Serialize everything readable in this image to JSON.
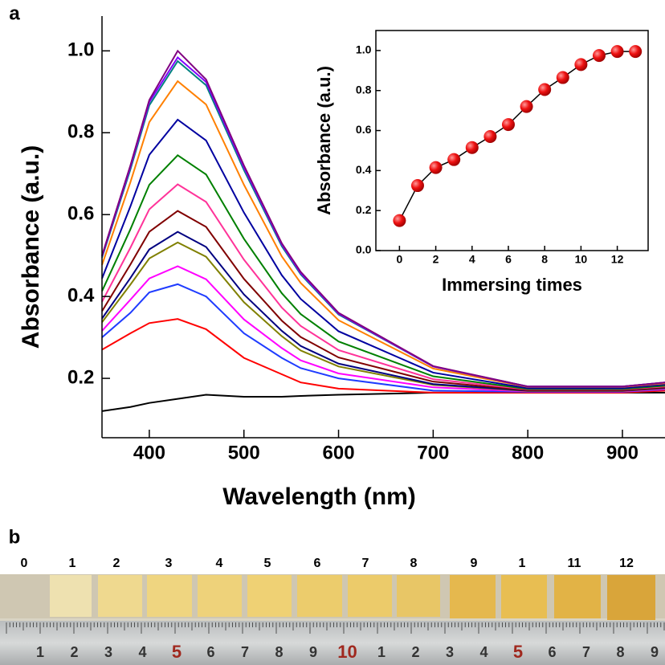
{
  "chart_data": [
    {
      "type": "line",
      "panel_label": "a",
      "x_label": "Wavelength (nm)",
      "y_label": "Absorbance (a.u.)",
      "x": [
        350,
        380,
        400,
        430,
        460,
        500,
        540,
        560,
        600,
        700,
        800,
        900,
        945
      ],
      "xlim": [
        350,
        945
      ],
      "ylim": [
        0.055,
        1.085
      ],
      "xticks": [
        400,
        500,
        600,
        700,
        800,
        900
      ],
      "yticks": [
        0.2,
        0.4,
        0.6,
        0.8,
        {
          "value": 1,
          "label": "1.0"
        }
      ],
      "markers": false,
      "series": [
        {
          "color": "#000000",
          "values": [
            0.12,
            0.13,
            0.14,
            0.15,
            0.16,
            0.155,
            0.155,
            0.157,
            0.16,
            0.165,
            0.165,
            0.165,
            0.165
          ]
        },
        {
          "color": "#ff0000",
          "values": [
            0.27,
            0.31,
            0.335,
            0.345,
            0.32,
            0.25,
            0.21,
            0.19,
            0.175,
            0.165,
            0.165,
            0.165,
            0.17
          ]
        },
        {
          "color": "#1f3cff",
          "values": [
            0.3,
            0.36,
            0.41,
            0.43,
            0.4,
            0.31,
            0.25,
            0.225,
            0.2,
            0.17,
            0.167,
            0.167,
            0.173
          ]
        },
        {
          "color": "#ff00ff",
          "values": [
            0.316,
            0.392,
            0.444,
            0.474,
            0.442,
            0.344,
            0.274,
            0.244,
            0.212,
            0.178,
            0.168,
            0.168,
            0.174
          ]
        },
        {
          "color": "#808000",
          "values": [
            0.337,
            0.429,
            0.493,
            0.532,
            0.497,
            0.386,
            0.303,
            0.268,
            0.229,
            0.184,
            0.169,
            0.169,
            0.176
          ]
        },
        {
          "color": "#000080",
          "values": [
            0.346,
            0.445,
            0.515,
            0.558,
            0.521,
            0.405,
            0.316,
            0.279,
            0.236,
            0.186,
            0.17,
            0.17,
            0.177
          ]
        },
        {
          "color": "#800000",
          "values": [
            0.364,
            0.478,
            0.558,
            0.609,
            0.57,
            0.443,
            0.341,
            0.301,
            0.251,
            0.192,
            0.171,
            0.171,
            0.178
          ]
        },
        {
          "color": "#ff3399",
          "values": [
            0.387,
            0.519,
            0.613,
            0.674,
            0.631,
            0.49,
            0.373,
            0.328,
            0.269,
            0.198,
            0.173,
            0.173,
            0.18
          ]
        },
        {
          "color": "#008000",
          "values": [
            0.413,
            0.564,
            0.673,
            0.745,
            0.698,
            0.541,
            0.408,
            0.357,
            0.29,
            0.205,
            0.174,
            0.174,
            0.182
          ]
        },
        {
          "color": "#0000a0",
          "values": [
            0.444,
            0.62,
            0.746,
            0.832,
            0.781,
            0.605,
            0.452,
            0.394,
            0.315,
            0.214,
            0.176,
            0.176,
            0.185
          ]
        },
        {
          "color": "#ff8000",
          "values": [
            0.477,
            0.679,
            0.826,
            0.926,
            0.869,
            0.673,
            0.498,
            0.433,
            0.342,
            0.224,
            0.179,
            0.179,
            0.188
          ]
        },
        {
          "color": "#008080",
          "values": [
            0.495,
            0.71,
            0.867,
            0.975,
            0.916,
            0.709,
            0.523,
            0.454,
            0.356,
            0.229,
            0.18,
            0.18,
            0.19
          ]
        },
        {
          "color": "#8000ff",
          "values": [
            0.498,
            0.716,
            0.875,
            0.984,
            0.924,
            0.715,
            0.527,
            0.457,
            0.358,
            0.229,
            0.18,
            0.18,
            0.19
          ]
        },
        {
          "color": "#800080",
          "values": [
            0.5,
            0.72,
            0.88,
            1.0,
            0.93,
            0.72,
            0.53,
            0.46,
            0.36,
            0.23,
            0.18,
            0.18,
            0.19
          ]
        }
      ]
    },
    {
      "type": "line",
      "x_label": "Immersing times",
      "y_label": "Absorbance (a.u.)",
      "x": [
        0,
        1,
        2,
        3,
        4,
        5,
        6,
        7,
        8,
        9,
        10,
        11,
        12,
        13
      ],
      "xlim": [
        -1.3,
        13.7
      ],
      "ylim": [
        0,
        1.1
      ],
      "xticks": [
        0,
        2,
        4,
        6,
        8,
        10,
        12
      ],
      "yticks": [
        {
          "value": 0,
          "label": "0.0"
        },
        0.2,
        0.4,
        0.6,
        0.8,
        {
          "value": 1,
          "label": "1.0"
        }
      ],
      "markers": true,
      "frame": true,
      "series": [
        {
          "color": "#ff0000",
          "values": [
            0.15,
            0.325,
            0.415,
            0.455,
            0.515,
            0.57,
            0.63,
            0.72,
            0.805,
            0.865,
            0.93,
            0.975,
            0.995,
            0.995
          ]
        }
      ]
    }
  ],
  "photo": {
    "panel_label": "b",
    "sample_labels": [
      "0",
      "1",
      "2",
      "3",
      "4",
      "5",
      "6",
      "7",
      "8",
      "9",
      "1",
      "11",
      "12"
    ],
    "ruler_labels": [
      "1",
      "2",
      "3",
      "4",
      "5",
      "6",
      "7",
      "8",
      "9",
      "10",
      "1",
      "2",
      "3",
      "4",
      "5",
      "6",
      "7",
      "8",
      "9"
    ]
  }
}
